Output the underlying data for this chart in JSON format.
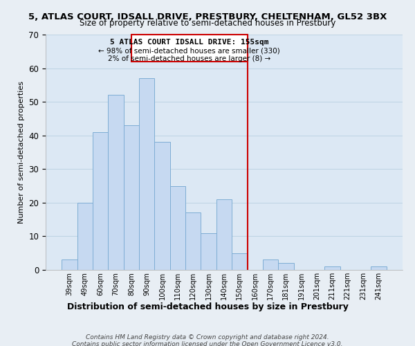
{
  "title": "5, ATLAS COURT, IDSALL DRIVE, PRESTBURY, CHELTENHAM, GL52 3BX",
  "subtitle": "Size of property relative to semi-detached houses in Prestbury",
  "xlabel": "Distribution of semi-detached houses by size in Prestbury",
  "ylabel": "Number of semi-detached properties",
  "categories": [
    "39sqm",
    "49sqm",
    "60sqm",
    "70sqm",
    "80sqm",
    "90sqm",
    "100sqm",
    "110sqm",
    "120sqm",
    "130sqm",
    "140sqm",
    "150sqm",
    "160sqm",
    "170sqm",
    "181sqm",
    "191sqm",
    "201sqm",
    "211sqm",
    "221sqm",
    "231sqm",
    "241sqm"
  ],
  "values": [
    3,
    20,
    41,
    52,
    43,
    57,
    38,
    25,
    17,
    11,
    21,
    5,
    0,
    3,
    2,
    0,
    0,
    1,
    0,
    0,
    1
  ],
  "bar_color": "#c6d9f1",
  "bar_edge_color": "#7eadd4",
  "marker_label": "5 ATLAS COURT IDSALL DRIVE: 155sqm",
  "annotation_line1": "← 98% of semi-detached houses are smaller (330)",
  "annotation_line2": "2% of semi-detached houses are larger (8) →",
  "marker_color": "#cc0000",
  "ylim": [
    0,
    70
  ],
  "yticks": [
    0,
    10,
    20,
    30,
    40,
    50,
    60,
    70
  ],
  "footnote1": "Contains HM Land Registry data © Crown copyright and database right 2024.",
  "footnote2": "Contains public sector information licensed under the Open Government Licence v3.0.",
  "bg_color": "#e8eef4",
  "plot_bg_color": "#dce8f4"
}
